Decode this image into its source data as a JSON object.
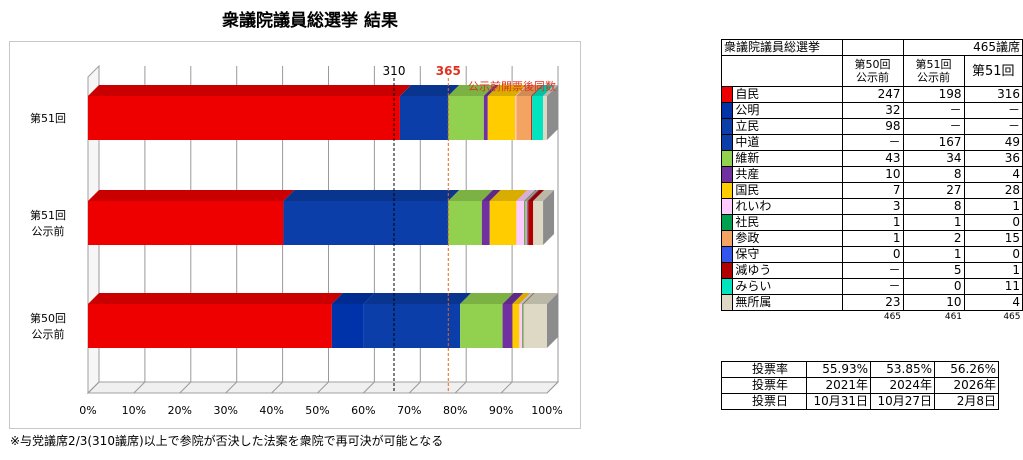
{
  "chart_data": {
    "type": "bar",
    "orientation": "horizontal",
    "stacked": "percent",
    "title": "衆議院議員総選挙  結果",
    "categories": [
      [
        "第51回",
        ""
      ],
      [
        "第51回",
        "公示前"
      ],
      [
        "第50回",
        "公示前"
      ]
    ],
    "x_ticks": [
      "0%",
      "10%",
      "20%",
      "30%",
      "40%",
      "50%",
      "60%",
      "70%",
      "80%",
      "90%",
      "100%"
    ],
    "xlim": [
      0,
      465
    ],
    "grid": true,
    "legend_position": "right",
    "series": [
      {
        "name": "自民",
        "color": "#ee0000",
        "values": [
          316,
          198,
          247
        ]
      },
      {
        "name": "公明",
        "color": "#0033aa",
        "values": [
          0,
          0,
          32
        ]
      },
      {
        "name": "立民",
        "color": "#0b3ea8",
        "values": [
          0,
          0,
          98
        ]
      },
      {
        "name": "中道",
        "color": "#0b3ea8",
        "values": [
          49,
          167,
          0
        ]
      },
      {
        "name": "維新",
        "color": "#92d050",
        "values": [
          36,
          34,
          43
        ]
      },
      {
        "name": "共産",
        "color": "#7030a0",
        "values": [
          4,
          8,
          10
        ]
      },
      {
        "name": "国民",
        "color": "#ffcc00",
        "values": [
          28,
          27,
          7
        ]
      },
      {
        "name": "れいわ",
        "color": "#ffccff",
        "values": [
          1,
          8,
          3
        ]
      },
      {
        "name": "社民",
        "color": "#00a050",
        "values": [
          0,
          1,
          1
        ]
      },
      {
        "name": "参政",
        "color": "#f4a460",
        "values": [
          15,
          2,
          1
        ]
      },
      {
        "name": "保守",
        "color": "#3355ee",
        "values": [
          0,
          1,
          0
        ]
      },
      {
        "name": "減ゆう",
        "color": "#b00000",
        "values": [
          1,
          5,
          0
        ]
      },
      {
        "name": "みらい",
        "color": "#00e5c0",
        "values": [
          11,
          0,
          0
        ]
      },
      {
        "name": "無所属",
        "color": "#ddd9c4",
        "values": [
          4,
          10,
          23
        ]
      }
    ],
    "reference_lines": [
      {
        "value": 310,
        "label": "310",
        "color": "#000000"
      },
      {
        "value": 365,
        "label": "365",
        "color": "#e8651a"
      }
    ],
    "annotation": "公示前開票後同数"
  },
  "seat_table": {
    "title": "衆議院議員総選挙",
    "total_seats": "465議席",
    "headers": [
      "第50回\n公示前",
      "第51回\n公示前",
      "第51回"
    ],
    "rows": [
      {
        "name": "自民",
        "color": "#ee0000",
        "values": [
          "247",
          "198",
          "316"
        ]
      },
      {
        "name": "公明",
        "color": "#0033aa",
        "values": [
          "32",
          "－",
          "－"
        ]
      },
      {
        "name": "立民",
        "color": "#0b3ea8",
        "values": [
          "98",
          "－",
          "－"
        ]
      },
      {
        "name": "中道",
        "color": "#0b3ea8",
        "values": [
          "－",
          "167",
          "49"
        ]
      },
      {
        "name": "維新",
        "color": "#92d050",
        "values": [
          "43",
          "34",
          "36"
        ]
      },
      {
        "name": "共産",
        "color": "#7030a0",
        "values": [
          "10",
          "8",
          "4"
        ]
      },
      {
        "name": "国民",
        "color": "#ffcc00",
        "values": [
          "7",
          "27",
          "28"
        ]
      },
      {
        "name": "れいわ",
        "color": "#ffccff",
        "values": [
          "3",
          "8",
          "1"
        ]
      },
      {
        "name": "社民",
        "color": "#00a050",
        "values": [
          "1",
          "1",
          "0"
        ]
      },
      {
        "name": "参政",
        "color": "#f4a460",
        "values": [
          "1",
          "2",
          "15"
        ]
      },
      {
        "name": "保守",
        "color": "#3355ee",
        "values": [
          "0",
          "1",
          "0"
        ]
      },
      {
        "name": "減ゆう",
        "color": "#b00000",
        "values": [
          "－",
          "5",
          "1"
        ]
      },
      {
        "name": "みらい",
        "color": "#00e5c0",
        "values": [
          "－",
          "0",
          "11"
        ]
      },
      {
        "name": "無所属",
        "color": "#ddd9c4",
        "values": [
          "23",
          "10",
          "4"
        ]
      }
    ],
    "totals": [
      "465",
      "461",
      "465"
    ]
  },
  "turnout_table": {
    "rows": [
      {
        "label": "投票率",
        "values": [
          "55.93%",
          "53.85%",
          "56.26%"
        ]
      },
      {
        "label": "投票年",
        "values": [
          "2021年",
          "2024年",
          "2026年"
        ]
      },
      {
        "label": "投票日",
        "values": [
          "10月31日",
          "10月27日",
          "2月8日"
        ]
      }
    ]
  },
  "footnote": "※与党議席2/3(310議席)以上で参院が否決した法案を衆院で再可決が可能となる"
}
